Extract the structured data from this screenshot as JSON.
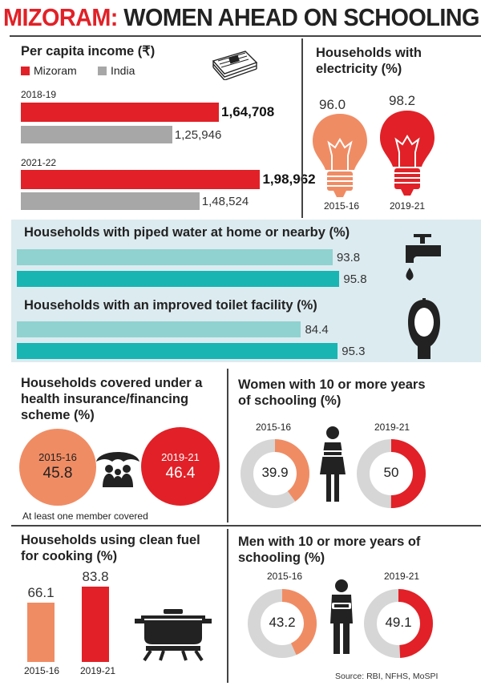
{
  "title": {
    "part1": "MIZORAM:",
    "part2": "WOMEN AHEAD ON SCHOOLING"
  },
  "colors": {
    "mizoram": "#e12127",
    "india": "#a7a7a7",
    "light_orange": "#f08c64",
    "teal_light": "#8fd2d0",
    "teal_dark": "#19b5b3"
  },
  "income": {
    "title": "Per capita income (₹)",
    "legend_mizoram": "Mizoram",
    "legend_india": "India",
    "icon": "money-stack-icon"
  },
  "electricity": {
    "title_line1": "Households with",
    "title_line2": "electricity (%)",
    "icon": "lightbulb-icon"
  },
  "water": {
    "title": "Households with piped water at home or nearby (%)",
    "icon": "tap-icon"
  },
  "toilet": {
    "title": "Households with an improved toilet facility (%)",
    "icon": "toilet-icon"
  },
  "insurance": {
    "title_line1": "Households covered under a",
    "title_line2": "health insurance/financing",
    "title_line3": "scheme (%)",
    "note": "At least one member covered",
    "icon": "umbrella-family-icon"
  },
  "women": {
    "title_line1": "Women with 10 or more years",
    "title_line2": "of schooling (%)",
    "icon": "woman-icon"
  },
  "fuel": {
    "title_line1": "Households using clean fuel",
    "title_line2": "for cooking (%)",
    "icon": "cooking-pot-icon"
  },
  "men": {
    "title_line1": "Men with 10 or more years of",
    "title_line2": "schooling (%)",
    "icon": "man-icon"
  },
  "source": "Source: RBI, NFHS, MoSPI",
  "chart_data": [
    {
      "type": "bar",
      "title": "Per capita income (₹)",
      "categories": [
        "2018-19",
        "2021-22"
      ],
      "series": [
        {
          "name": "Mizoram",
          "values": [
            164708,
            198962
          ],
          "labels": [
            "1,64,708",
            "1,98,962"
          ]
        },
        {
          "name": "India",
          "values": [
            125946,
            148524
          ],
          "labels": [
            "1,25,946",
            "1,48,524"
          ]
        }
      ]
    },
    {
      "type": "bar",
      "title": "Households with electricity (%)",
      "categories": [
        "2015-16",
        "2019-21"
      ],
      "values": [
        96.0,
        98.2
      ],
      "labels": [
        "96.0",
        "98.2"
      ]
    },
    {
      "type": "bar",
      "title": "Households with piped water at home or nearby (%)",
      "categories": [
        "2015-16",
        "2019-21"
      ],
      "values": [
        93.8,
        95.8
      ],
      "labels": [
        "93.8",
        "95.8"
      ]
    },
    {
      "type": "bar",
      "title": "Households with an improved toilet facility (%)",
      "categories": [
        "2015-16",
        "2019-21"
      ],
      "values": [
        84.4,
        95.3
      ],
      "labels": [
        "84.4",
        "95.3"
      ]
    },
    {
      "type": "bar",
      "title": "Households covered under a health insurance/financing scheme (%)",
      "categories": [
        "2015-16",
        "2019-21"
      ],
      "values": [
        45.8,
        46.4
      ],
      "labels": [
        "45.8",
        "46.4"
      ]
    },
    {
      "type": "pie",
      "title": "Women with 10 or more years of schooling (%)",
      "categories": [
        "2015-16",
        "2019-21"
      ],
      "values": [
        39.9,
        50
      ],
      "labels": [
        "39.9",
        "50"
      ]
    },
    {
      "type": "bar",
      "title": "Households using clean fuel for cooking (%)",
      "categories": [
        "2015-16",
        "2019-21"
      ],
      "values": [
        66.1,
        83.8
      ],
      "labels": [
        "66.1",
        "83.8"
      ]
    },
    {
      "type": "pie",
      "title": "Men with 10 or more years of schooling (%)",
      "categories": [
        "2015-16",
        "2019-21"
      ],
      "values": [
        43.2,
        49.1
      ],
      "labels": [
        "43.2",
        "49.1"
      ]
    }
  ]
}
